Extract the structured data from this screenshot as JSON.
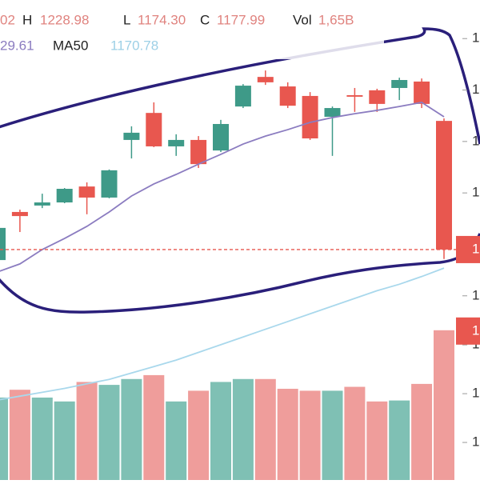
{
  "header": {
    "open_partial": "02",
    "high_label": "H",
    "high": "1228.98",
    "low_label": "L",
    "low": "1174.30",
    "close_label": "C",
    "close": "1177.99",
    "vol_label": "Vol",
    "volume": "1,65B",
    "ma_partial": "29.61",
    "ma50_label": "MA50",
    "ma50": "1170.78"
  },
  "chart_data": {
    "type": "candlestick",
    "categories": [
      null,
      null,
      null,
      null,
      null,
      null,
      null,
      null,
      null,
      null,
      null,
      null,
      null,
      null,
      null,
      null,
      null,
      null,
      null,
      null,
      null
    ],
    "open": [
      1173.9,
      1192.6,
      1195.1,
      1196.3,
      1202.5,
      1198.2,
      1220.6,
      1231.1,
      1218.1,
      1220.6,
      1216.5,
      1233.6,
      1245.1,
      1241.4,
      1237.7,
      1229.6,
      1238.0,
      1239.9,
      1240.8,
      1243.3,
      1228.0
    ],
    "high": [
      1187.9,
      1193.5,
      1199.7,
      1201.9,
      1204.1,
      1209.1,
      1225.9,
      1235.2,
      1222.8,
      1222.1,
      1228.4,
      1242.3,
      1247.6,
      1243.0,
      1239.2,
      1233.6,
      1240.8,
      1240.5,
      1244.8,
      1244.5,
      1228.98
    ],
    "low": [
      1172.4,
      1184.8,
      1194.1,
      1196.0,
      1191.7,
      1197.9,
      1213.4,
      1217.8,
      1214.4,
      1209.7,
      1215.9,
      1233.0,
      1242.0,
      1233.0,
      1220.6,
      1214.4,
      1231.5,
      1231.5,
      1236.1,
      1233.0,
      1174.3
    ],
    "close": [
      1186.4,
      1191.0,
      1196.3,
      1201.6,
      1198.2,
      1208.8,
      1223.4,
      1218.1,
      1220.6,
      1211.2,
      1226.8,
      1241.7,
      1243.0,
      1233.9,
      1221.2,
      1233.0,
      1237.4,
      1234.6,
      1243.9,
      1234.6,
      1177.99
    ],
    "up_color": "#3e9a88",
    "down_color": "#e8574f",
    "ma_lines": [
      {
        "color": "#8b7cc0",
        "values": [
          1169.3,
          1172.4,
          1178.0,
          1182.3,
          1187.0,
          1192.6,
          1198.8,
          1203.5,
          1207.2,
          1211.2,
          1215.0,
          1219.0,
          1222.1,
          1224.6,
          1227.4,
          1229.3,
          1230.8,
          1232.1,
          1233.6,
          1235.2,
          1229.61
        ]
      },
      {
        "color": "#a9d8ec",
        "values": [
          1119.5,
          1121.0,
          1122.5,
          1124.0,
          1125.8,
          1127.5,
          1130.0,
          1132.5,
          1135.0,
          1138.0,
          1141.0,
          1144.0,
          1147.0,
          1150.0,
          1153.0,
          1156.0,
          1159.0,
          1162.0,
          1164.5,
          1167.5,
          1170.78
        ]
      }
    ],
    "volume": [
      0.96,
      1.04,
      0.96,
      0.92,
      1.12,
      1.09,
      1.15,
      1.19,
      0.92,
      1.03,
      1.12,
      1.15,
      1.15,
      1.05,
      1.03,
      1.03,
      1.07,
      0.92,
      0.93,
      1.1,
      1.65
    ],
    "volume_up_color": "#7fc0b4",
    "volume_down_color": "#ef9d9b",
    "ylim": [
      1088.4,
      1275.0
    ],
    "yticks": [
      {
        "value": 1260,
        "label": "1"
      },
      {
        "value": 1240,
        "label": "1"
      },
      {
        "value": 1220,
        "label": "1"
      },
      {
        "value": 1200,
        "label": "1"
      },
      {
        "value": 1180,
        "label": "1"
      },
      {
        "value": 1160,
        "label": "1"
      }
    ],
    "y2lim": [
      0.115,
      1.755
    ],
    "y2ticks": [
      {
        "value": 1.5,
        "label": "1"
      },
      {
        "value": 1.0,
        "label": "1"
      },
      {
        "value": 0.5,
        "label": "1"
      }
    ],
    "last_price_label": "1",
    "last_volume_label": "1"
  }
}
